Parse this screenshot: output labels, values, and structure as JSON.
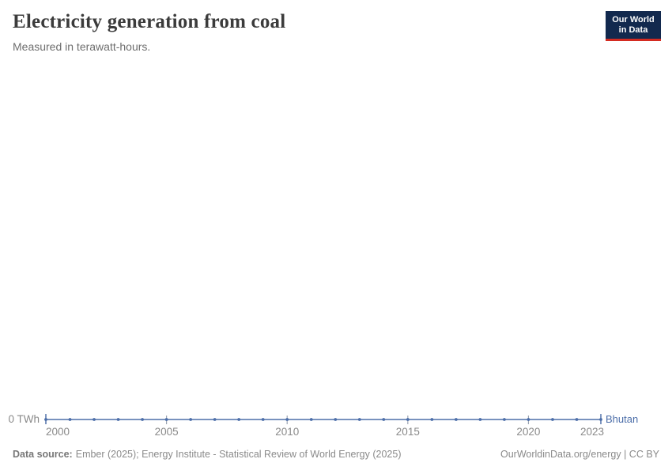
{
  "header": {
    "title": "Electricity generation from coal",
    "subtitle": "Measured in terawatt-hours.",
    "logo": {
      "line1": "Our World",
      "line2": "in Data",
      "bg_color": "#12294e",
      "accent_color": "#d42b21"
    }
  },
  "chart_data": {
    "type": "line",
    "title": "Electricity generation from coal",
    "subtitle": "Measured in terawatt-hours.",
    "unit": "TWh",
    "x": [
      2000,
      2001,
      2002,
      2003,
      2004,
      2005,
      2006,
      2007,
      2008,
      2009,
      2010,
      2011,
      2012,
      2013,
      2014,
      2015,
      2016,
      2017,
      2018,
      2019,
      2020,
      2021,
      2022,
      2023
    ],
    "series": [
      {
        "name": "Bhutan",
        "color": "#4c6ea9",
        "values": [
          0,
          0,
          0,
          0,
          0,
          0,
          0,
          0,
          0,
          0,
          0,
          0,
          0,
          0,
          0,
          0,
          0,
          0,
          0,
          0,
          0,
          0,
          0,
          0
        ]
      }
    ],
    "x_ticks": [
      2000,
      2005,
      2010,
      2015,
      2020,
      2023
    ],
    "y_ticks": [
      "0 TWh"
    ],
    "y_axis_label": "0 TWh",
    "ylim": [
      0,
      0
    ],
    "grid": false,
    "legend_position": "end-of-line"
  },
  "footer": {
    "source_label": "Data source:",
    "source_text": "Ember (2025); Energy Institute - Statistical Review of World Energy (2025)",
    "site_text": "OurWorldinData.org/energy | CC BY"
  },
  "colors": {
    "series_blue": "#4c6ea9",
    "axis_text": "#8a8a8a",
    "tick_mark": "#9aa4b2",
    "title_text": "#3b3b3b",
    "subtitle_text": "#6e6e6e",
    "logo_navy": "#12294e",
    "logo_red": "#d42b21"
  }
}
